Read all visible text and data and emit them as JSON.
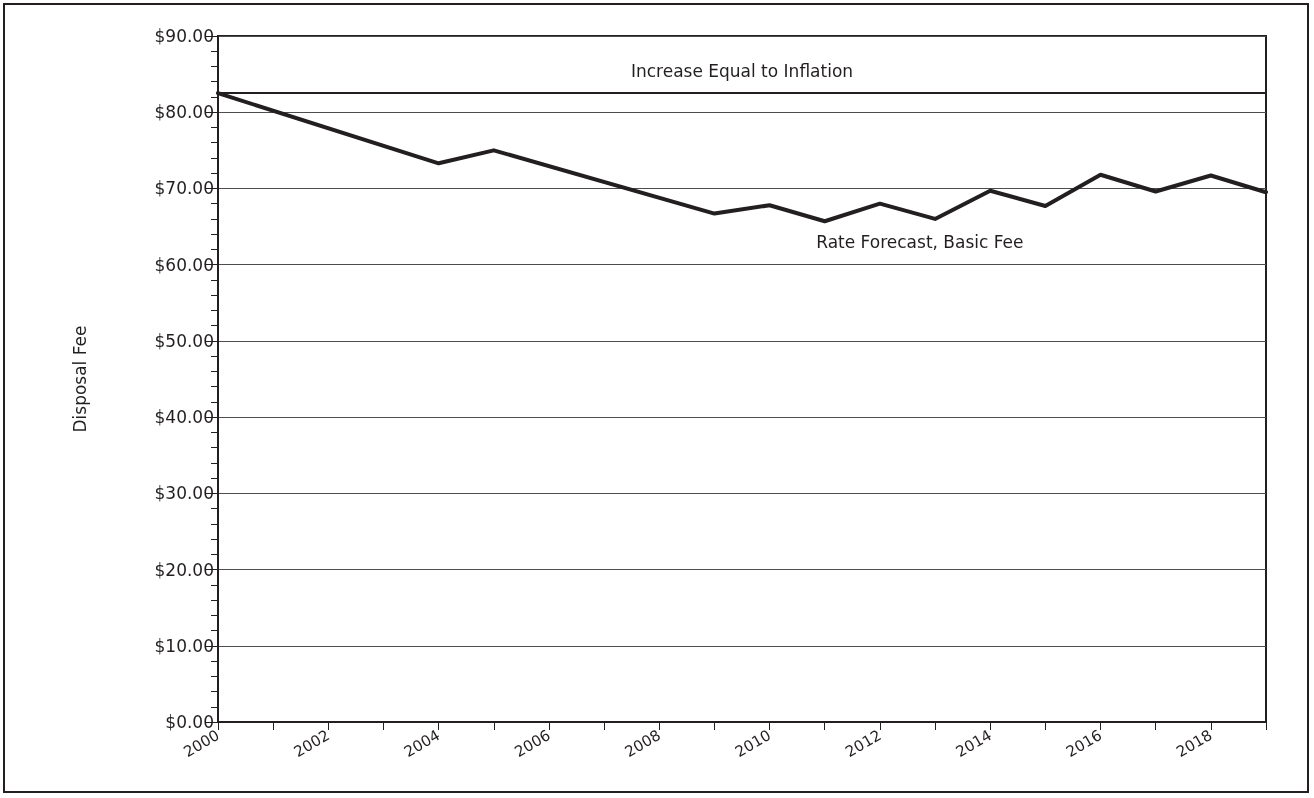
{
  "chart_data": {
    "type": "line",
    "ylabel": "Disposal Fee",
    "x": [
      2000,
      2004,
      2005,
      2009,
      2010,
      2011,
      2012,
      2013,
      2014,
      2015,
      2016,
      2017,
      2018,
      2019
    ],
    "series": [
      {
        "name": "Rate Forecast, Basic Fee",
        "color": "#231f20",
        "values": [
          82.5,
          73.3,
          75.0,
          66.7,
          67.8,
          65.7,
          68.0,
          66.0,
          69.7,
          67.7,
          71.8,
          69.6,
          71.7,
          69.5
        ]
      }
    ],
    "xlim": [
      2000,
      2019
    ],
    "xticks": [
      2000,
      {
        "value": 2001,
        "label": null
      },
      2002,
      {
        "value": 2003,
        "label": null
      },
      2004,
      {
        "value": 2005,
        "label": null
      },
      2006,
      {
        "value": 2007,
        "label": null
      },
      2008,
      {
        "value": 2009,
        "label": null
      },
      2010,
      {
        "value": 2011,
        "label": null
      },
      2012,
      {
        "value": 2013,
        "label": null
      },
      2014,
      {
        "value": 2015,
        "label": null
      },
      2016,
      {
        "value": 2017,
        "label": null
      },
      2018,
      {
        "value": 2019,
        "label": null
      }
    ],
    "ylim": [
      0,
      90
    ],
    "yticks": [
      {
        "value": 0,
        "label": "$0.00"
      },
      {
        "value": 10,
        "label": "$10.00"
      },
      {
        "value": 20,
        "label": "$20.00"
      },
      {
        "value": 30,
        "label": "$30.00"
      },
      {
        "value": 40,
        "label": "$40.00"
      },
      {
        "value": 50,
        "label": "$50.00"
      },
      {
        "value": 60,
        "label": "$60.00"
      },
      {
        "value": 70,
        "label": "$70.00"
      },
      {
        "value": 80,
        "label": "$80.00"
      },
      {
        "value": 90,
        "label": "$90.00"
      },
      {
        "value": 2,
        "label": null
      },
      {
        "value": 4,
        "label": null
      },
      {
        "value": 6,
        "label": null
      },
      {
        "value": 8,
        "label": null
      },
      {
        "value": 12,
        "label": null
      },
      {
        "value": 14,
        "label": null
      },
      {
        "value": 16,
        "label": null
      },
      {
        "value": 18,
        "label": null
      },
      {
        "value": 22,
        "label": null
      },
      {
        "value": 24,
        "label": null
      },
      {
        "value": 26,
        "label": null
      },
      {
        "value": 28,
        "label": null
      },
      {
        "value": 32,
        "label": null
      },
      {
        "value": 34,
        "label": null
      },
      {
        "value": 36,
        "label": null
      },
      {
        "value": 38,
        "label": null
      },
      {
        "value": 42,
        "label": null
      },
      {
        "value": 44,
        "label": null
      },
      {
        "value": 46,
        "label": null
      },
      {
        "value": 48,
        "label": null
      },
      {
        "value": 52,
        "label": null
      },
      {
        "value": 54,
        "label": null
      },
      {
        "value": 56,
        "label": null
      },
      {
        "value": 58,
        "label": null
      },
      {
        "value": 62,
        "label": null
      },
      {
        "value": 64,
        "label": null
      },
      {
        "value": 66,
        "label": null
      },
      {
        "value": 68,
        "label": null
      },
      {
        "value": 72,
        "label": null
      },
      {
        "value": 74,
        "label": null
      },
      {
        "value": 76,
        "label": null
      },
      {
        "value": 78,
        "label": null
      },
      {
        "value": 82,
        "label": null
      },
      {
        "value": 84,
        "label": null
      },
      {
        "value": 86,
        "label": null
      },
      {
        "value": 88,
        "label": null
      }
    ],
    "ref_lines": [
      {
        "axis": "y",
        "value": 82.5,
        "label": "Increase Equal to Inflation",
        "color": "#231f20"
      }
    ],
    "grid": "y",
    "legend": false,
    "marker": "none",
    "line_style": "solid"
  }
}
